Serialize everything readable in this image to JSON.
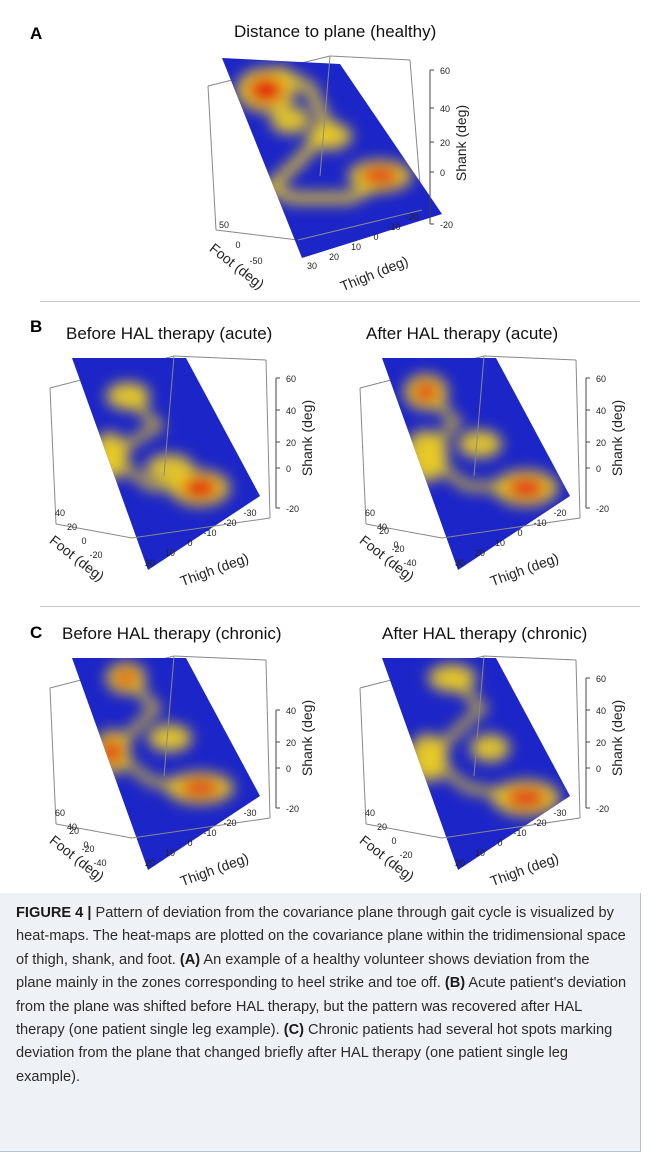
{
  "figure": {
    "panels": [
      {
        "letter": "A",
        "plots": [
          {
            "id": "A",
            "title": "Distance to plane (healthy)",
            "z_label": "Shank (deg)",
            "x_label": "Thigh (deg)",
            "y_label": "Foot (deg)",
            "z_ticks": [
              "60",
              "40",
              "20",
              "0",
              "-20"
            ],
            "x_ticks": [
              "30",
              "20",
              "10",
              "0",
              "-10",
              "-20"
            ],
            "y_ticks": [
              "50",
              "0",
              "-50"
            ]
          }
        ]
      },
      {
        "letter": "B",
        "plots": [
          {
            "id": "B1",
            "title": "Before HAL therapy (acute)",
            "z_label": "Shank (deg)",
            "x_label": "Thigh (deg)",
            "y_label": "Foot (deg)",
            "z_ticks": [
              "60",
              "40",
              "20",
              "0",
              "-20"
            ],
            "x_ticks": [
              "20",
              "10",
              "0",
              "-10",
              "-20",
              "-30"
            ],
            "y_ticks": [
              "40",
              "20",
              "0",
              "-20"
            ]
          },
          {
            "id": "B2",
            "title": "After HAL therapy (acute)",
            "z_label": "Shank (deg)",
            "x_label": "Thigh (deg)",
            "y_label": "Foot (deg)",
            "z_ticks": [
              "60",
              "40",
              "20",
              "0",
              "-20"
            ],
            "x_ticks": [
              "30",
              "20",
              "10",
              "0",
              "-10",
              "-20"
            ],
            "y_ticks": [
              "60",
              "40",
              "20",
              "0",
              "-20",
              "-40"
            ]
          }
        ]
      },
      {
        "letter": "C",
        "plots": [
          {
            "id": "C1",
            "title": "Before HAL therapy (chronic)",
            "z_label": "Shank (deg)",
            "x_label": "Thigh (deg)",
            "y_label": "Foot (deg)",
            "z_ticks": [
              "40",
              "20",
              "0",
              "-20"
            ],
            "x_ticks": [
              "20",
              "10",
              "0",
              "-10",
              "-20",
              "-30"
            ],
            "y_ticks": [
              "60",
              "40",
              "20",
              "0",
              "-20",
              "-40"
            ]
          },
          {
            "id": "C2",
            "title": "After HAL therapy (chronic)",
            "z_label": "Shank (deg)",
            "x_label": "Thigh (deg)",
            "y_label": "Foot (deg)",
            "z_ticks": [
              "60",
              "40",
              "20",
              "0",
              "-20"
            ],
            "x_ticks": [
              "20",
              "10",
              "0",
              "-10",
              "-20",
              "-30"
            ],
            "y_ticks": [
              "40",
              "20",
              "0",
              "-20"
            ]
          }
        ]
      }
    ],
    "colors": {
      "plane": "#1c25c8",
      "hot": "#e01010",
      "warm": "#f2d21e",
      "rule": "#c8c8c8",
      "caption_bg": "#eef2f6"
    }
  },
  "caption": {
    "figure_label": "FIGURE 4 |",
    "intro": " Pattern of deviation from the covariance plane through gait cycle is visualized by heat-maps. The heat-maps are plotted on the covariance plane within the tridimensional space of thigh, shank, and foot. ",
    "ref_a": "(A)",
    "text_a": " An example of a healthy volunteer shows deviation from the plane mainly in the zones corresponding to heel strike and toe off. ",
    "ref_b": "(B)",
    "text_b": " Acute patient's deviation from the plane was shifted before HAL therapy, but the pattern was recovered after HAL therapy (one patient single leg example). ",
    "ref_c": "(C)",
    "text_c": " Chronic patients had several hot spots marking deviation from the plane that changed briefly after HAL therapy (one patient single leg example)."
  }
}
